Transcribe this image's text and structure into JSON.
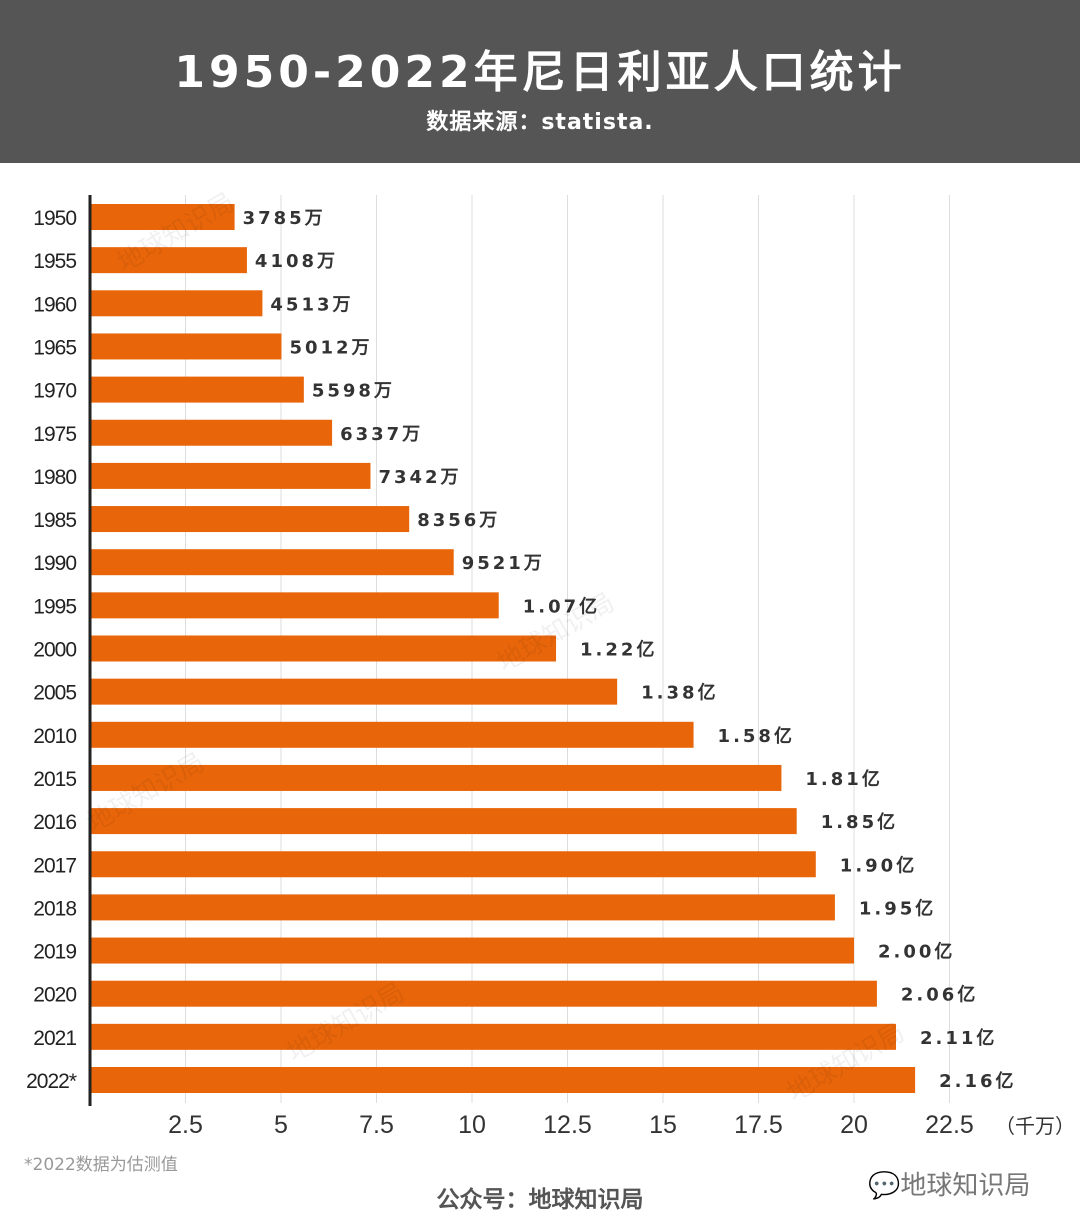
{
  "header": {
    "title": "1950-2022年尼日利亚人口统计",
    "subtitle": "数据来源：statista."
  },
  "chart_data": {
    "type": "bar",
    "orientation": "horizontal",
    "title": "1950-2022年尼日利亚人口统计",
    "xlabel": "（千万）",
    "categories": [
      "1950",
      "1955",
      "1960",
      "1965",
      "1970",
      "1975",
      "1980",
      "1985",
      "1990",
      "1995",
      "2000",
      "2005",
      "2010",
      "2015",
      "2016",
      "2017",
      "2018",
      "2019",
      "2020",
      "2021",
      "2022*"
    ],
    "values": [
      3.785,
      4.108,
      4.513,
      5.012,
      5.598,
      6.337,
      7.342,
      8.356,
      9.521,
      10.7,
      12.2,
      13.8,
      15.8,
      18.1,
      18.5,
      19.0,
      19.5,
      20.0,
      20.6,
      21.1,
      21.6
    ],
    "data_labels": [
      "3785万",
      "4108万",
      "4513万",
      "5012万",
      "5598万",
      "6337万",
      "7342万",
      "8356万",
      "9521万",
      "1.07亿",
      "1.22亿",
      "1.38亿",
      "1.58亿",
      "1.81亿",
      "1.85亿",
      "1.90亿",
      "1.95亿",
      "2.00亿",
      "2.06亿",
      "2.11亿",
      "2.16亿"
    ],
    "xticks": [
      "2.5",
      "5",
      "7.5",
      "10",
      "12.5",
      "15",
      "17.5",
      "20",
      "22.5"
    ],
    "xtick_values": [
      2.5,
      5,
      7.5,
      10,
      12.5,
      15,
      17.5,
      20,
      22.5
    ],
    "xlim": [
      0,
      25
    ],
    "grid": true,
    "bar_color": "#e8650a"
  },
  "note": "*2022数据为估测值",
  "footer": "公众号：地球知识局",
  "brand": "地球知识局",
  "watermark": "地球知识局"
}
